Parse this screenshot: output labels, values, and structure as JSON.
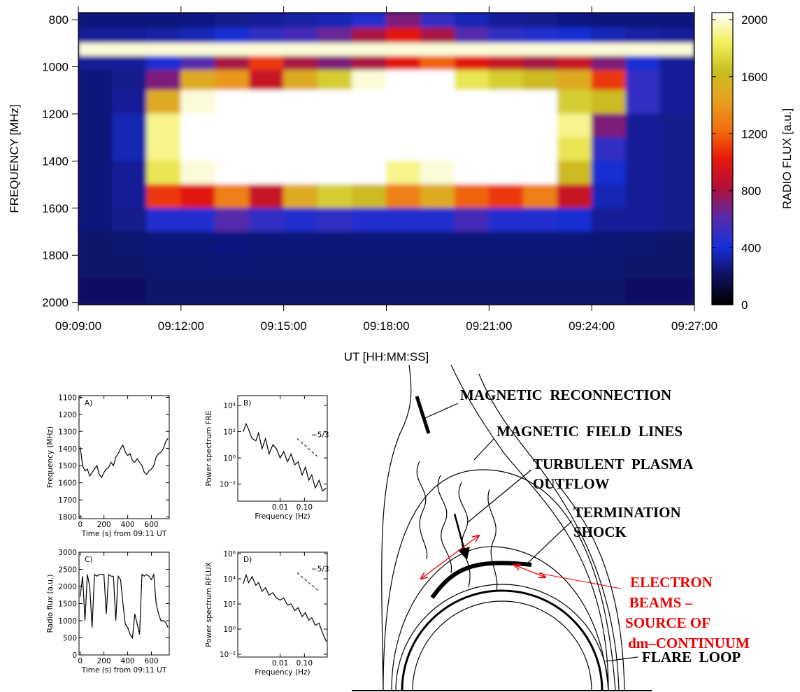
{
  "chart_data": [
    {
      "type": "heatmap",
      "xlabel": "UT [HH:MM:SS]",
      "ylabel": "FREQUENCY [MHz]",
      "colorbar_label": "RADIO FLUX [a.u.]",
      "x": [
        30,
        90,
        150,
        210,
        270,
        330,
        390,
        450,
        510,
        570,
        630,
        690,
        750,
        810,
        870,
        930,
        990,
        1050
      ],
      "y": [
        800,
        870,
        930,
        980,
        1050,
        1150,
        1250,
        1350,
        1450,
        1550,
        1650,
        1750,
        1850,
        1950
      ],
      "z": [
        [
          250,
          250,
          250,
          260,
          280,
          300,
          320,
          350,
          450,
          700,
          500,
          350,
          300,
          280,
          260,
          250,
          250,
          250
        ],
        [
          300,
          300,
          320,
          350,
          400,
          500,
          550,
          650,
          800,
          1000,
          800,
          600,
          500,
          450,
          400,
          350,
          320,
          300
        ],
        [
          2000,
          2000,
          2000,
          2000,
          2000,
          2000,
          2000,
          2000,
          2000,
          2000,
          2000,
          2000,
          2000,
          2000,
          2000,
          2000,
          2000,
          2000
        ],
        [
          300,
          300,
          400,
          600,
          800,
          1100,
          800,
          700,
          800,
          1000,
          1200,
          1000,
          900,
          800,
          900,
          700,
          400,
          300
        ],
        [
          250,
          280,
          700,
          1500,
          1400,
          900,
          1500,
          1700,
          2000,
          2050,
          2050,
          1800,
          1700,
          1600,
          1500,
          1100,
          500,
          300
        ],
        [
          250,
          300,
          1500,
          2000,
          2050,
          2050,
          2050,
          2050,
          2050,
          2050,
          2050,
          2050,
          2050,
          2050,
          1700,
          1600,
          500,
          300
        ],
        [
          250,
          350,
          1900,
          2050,
          2050,
          2050,
          2050,
          2050,
          2050,
          2050,
          2050,
          2050,
          2050,
          2050,
          1900,
          700,
          300,
          280
        ],
        [
          250,
          350,
          1900,
          2050,
          2050,
          2050,
          2050,
          2050,
          2050,
          2050,
          2050,
          2050,
          2050,
          2050,
          1800,
          500,
          300,
          280
        ],
        [
          250,
          300,
          1800,
          2000,
          2050,
          2050,
          2050,
          2050,
          2050,
          1900,
          2000,
          2050,
          2050,
          2050,
          1600,
          400,
          300,
          280
        ],
        [
          250,
          300,
          1100,
          1000,
          1300,
          900,
          1500,
          1700,
          1600,
          1300,
          1500,
          1200,
          1100,
          1300,
          900,
          350,
          300,
          280
        ],
        [
          250,
          280,
          450,
          450,
          600,
          500,
          450,
          500,
          450,
          450,
          450,
          550,
          450,
          450,
          400,
          300,
          300,
          280
        ],
        [
          220,
          230,
          250,
          250,
          260,
          250,
          250,
          250,
          250,
          250,
          250,
          250,
          250,
          250,
          250,
          240,
          230,
          220
        ],
        [
          220,
          220,
          230,
          230,
          240,
          230,
          230,
          230,
          230,
          230,
          230,
          230,
          230,
          230,
          230,
          230,
          220,
          220
        ],
        [
          210,
          210,
          220,
          220,
          220,
          220,
          220,
          220,
          220,
          220,
          220,
          220,
          220,
          220,
          220,
          220,
          210,
          210
        ]
      ],
      "xlim": [
        0,
        1080
      ],
      "ylim": [
        2010,
        770
      ],
      "xticks": [
        {
          "value": 0,
          "label": "09:09:00"
        },
        {
          "value": 180,
          "label": "09:12:00"
        },
        {
          "value": 360,
          "label": "09:15:00"
        },
        {
          "value": 540,
          "label": "09:18:00"
        },
        {
          "value": 720,
          "label": "09:21:00"
        },
        {
          "value": 900,
          "label": "09:24:00"
        },
        {
          "value": 1080,
          "label": "09:27:00"
        }
      ],
      "yticks": [
        800,
        1000,
        1200,
        1400,
        1600,
        1800,
        2000
      ],
      "zlim": [
        0,
        2050
      ],
      "zticks": [
        0,
        400,
        800,
        1200,
        1600,
        2000
      ],
      "colorscale": [
        "#000000",
        "#101060",
        "#1530d8",
        "#5a2aa8",
        "#b0103a",
        "#e81808",
        "#f07010",
        "#e8a020",
        "#c8c020",
        "#f4f060",
        "#ffffff"
      ]
    },
    {
      "type": "line",
      "panel_label": "A)",
      "xlabel": "Time (s) from 09:11 UT",
      "ylabel": "Frequency (MHz)",
      "x": [
        0,
        20,
        40,
        60,
        80,
        100,
        120,
        140,
        160,
        180,
        200,
        220,
        240,
        260,
        280,
        300,
        320,
        340,
        360,
        380,
        400,
        420,
        440,
        460,
        480,
        500,
        520,
        540,
        560,
        580,
        600,
        620,
        640,
        660,
        680,
        700,
        720,
        740
      ],
      "series": [
        {
          "color": "#000000",
          "values": [
            1390,
            1500,
            1530,
            1520,
            1560,
            1540,
            1520,
            1500,
            1550,
            1570,
            1540,
            1520,
            1510,
            1480,
            1500,
            1450,
            1430,
            1400,
            1380,
            1420,
            1440,
            1430,
            1470,
            1480,
            1460,
            1480,
            1500,
            1540,
            1550,
            1530,
            1520,
            1500,
            1450,
            1430,
            1420,
            1400,
            1360,
            1340
          ]
        }
      ],
      "xlim": [
        -10,
        750
      ],
      "ylim": [
        1810,
        1090
      ],
      "xticks": [
        0,
        200,
        400,
        600
      ],
      "yticks": [
        1100,
        1200,
        1300,
        1400,
        1500,
        1600,
        1700,
        1800
      ]
    },
    {
      "type": "line",
      "panel_label": "B)",
      "xlabel": "Frequency (Hz)",
      "ylabel": "Power spectrum FRE",
      "xscale": "log",
      "yscale": "log",
      "x": [
        0.0003,
        0.0004,
        0.0005,
        0.0007,
        0.001,
        0.0013,
        0.0018,
        0.0025,
        0.0035,
        0.005,
        0.007,
        0.01,
        0.014,
        0.02,
        0.028,
        0.04,
        0.055,
        0.08,
        0.11,
        0.15,
        0.2,
        0.28,
        0.4,
        0.55,
        0.8
      ],
      "series": [
        {
          "color": "#000000",
          "values": [
            100,
            400,
            150,
            30,
            20,
            80,
            5,
            30,
            2,
            10,
            5,
            1,
            3,
            0.5,
            2,
            0.3,
            0.5,
            0.05,
            0.2,
            0.02,
            0.05,
            0.005,
            0.02,
            0.003,
            0.005
          ]
        }
      ],
      "reference_line": {
        "label": "−5/3",
        "x": [
          0.05,
          0.4
        ],
        "y": [
          30,
          1
        ]
      },
      "xlim": [
        0.00018,
        0.87
      ],
      "ylim": [
        0.0005,
        56000
      ],
      "xticks": [
        0.01,
        {
          "value": 0.1,
          "label": "0.10"
        }
      ],
      "yticks": [
        {
          "value": 0.01,
          "label": "10⁻²"
        },
        {
          "value": 1,
          "label": "10⁰"
        },
        {
          "value": 100,
          "label": "10²"
        },
        {
          "value": 10000,
          "label": "10⁴"
        }
      ]
    },
    {
      "type": "line",
      "panel_label": "C)",
      "xlabel": "Time (s) from 09:11 UT",
      "ylabel": "Radio flux (a.u.)",
      "x": [
        0,
        20,
        40,
        60,
        80,
        100,
        120,
        140,
        160,
        180,
        200,
        220,
        240,
        260,
        280,
        300,
        320,
        340,
        360,
        380,
        400,
        420,
        440,
        460,
        480,
        500,
        520,
        540,
        560,
        580,
        600,
        620,
        640,
        660,
        680,
        700,
        720,
        740
      ],
      "series": [
        {
          "color": "#000000",
          "values": [
            1700,
            2300,
            1000,
            2350,
            2000,
            800,
            2350,
            2300,
            2350,
            2350,
            2350,
            1200,
            2350,
            2300,
            2300,
            1000,
            2300,
            2200,
            1500,
            900,
            800,
            600,
            500,
            1200,
            900,
            600,
            2350,
            2300,
            2350,
            2300,
            2200,
            2350,
            1500,
            1200,
            1000,
            1000,
            950,
            800
          ]
        }
      ],
      "xlim": [
        -10,
        750
      ],
      "ylim": [
        0,
        3000
      ],
      "xticks": [
        0,
        200,
        400,
        600
      ],
      "yticks": [
        0,
        500,
        1000,
        1500,
        2000,
        2500,
        3000
      ]
    },
    {
      "type": "line",
      "panel_label": "D)",
      "xlabel": "Frequency (Hz)",
      "ylabel": "Power spectrum RFLUX",
      "xscale": "log",
      "yscale": "log",
      "x": [
        0.0003,
        0.0004,
        0.0005,
        0.0007,
        0.001,
        0.0013,
        0.0018,
        0.0025,
        0.0035,
        0.005,
        0.007,
        0.01,
        0.014,
        0.02,
        0.028,
        0.04,
        0.055,
        0.08,
        0.11,
        0.15,
        0.2,
        0.28,
        0.4,
        0.55,
        0.8
      ],
      "series": [
        {
          "color": "#000000",
          "values": [
            4000,
            20000,
            5000,
            15000,
            3000,
            5000,
            1000,
            2000,
            500,
            800,
            300,
            200,
            300,
            80,
            100,
            30,
            50,
            10,
            20,
            5,
            8,
            2,
            3,
            0.5,
            0.1
          ]
        }
      ],
      "reference_line": {
        "label": "−5/3",
        "x": [
          0.05,
          0.4
        ],
        "y": [
          30000,
          1000
        ]
      },
      "xlim": [
        0.00018,
        0.87
      ],
      "ylim": [
        0.006,
        1300000
      ],
      "xticks": [
        0.01,
        {
          "value": 0.1,
          "label": "0.10"
        }
      ],
      "yticks": [
        {
          "value": 0.01,
          "label": "10⁻²"
        },
        {
          "value": 1,
          "label": "10⁰"
        },
        {
          "value": 100,
          "label": "10²"
        },
        {
          "value": 10000,
          "label": "10⁴"
        },
        {
          "value": 1000000,
          "label": "10⁶"
        }
      ]
    }
  ],
  "diagram": {
    "reconnection": "MAGNETIC  RECONNECTION",
    "field_lines": "MAGNETIC  FIELD  LINES",
    "outflow": [
      "TURBULENT  PLASMA",
      "OUTFLOW"
    ],
    "shock": [
      "TERMINATION",
      "SHOCK"
    ],
    "beams": [
      "ELECTRON",
      "BEAMS –",
      "SOURCE OF",
      "dm–CONTINUUM"
    ],
    "flare_loop": "FLARE  LOOP"
  }
}
